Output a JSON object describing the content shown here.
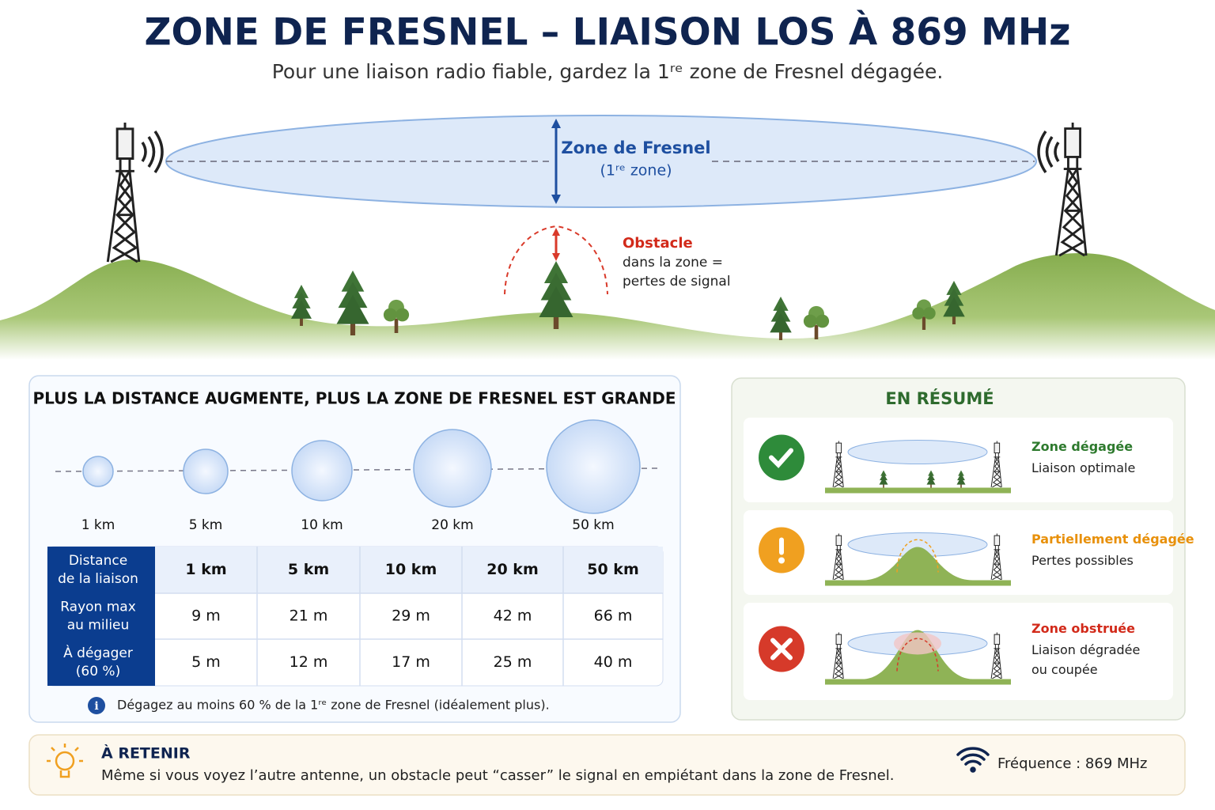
{
  "header": {
    "title": "ZONE DE FRESNEL – LIAISON LOS À 869 MHz",
    "subtitle": "Pour une liaison radio fiable, gardez la 1ʳᵉ zone de Fresnel dégagée."
  },
  "diagram": {
    "zone_label": "Zone de Fresnel",
    "zone_sublabel": "(1ʳᵉ zone)",
    "obstacle_title": "Obstacle",
    "obstacle_text": [
      "dans la zone =",
      "pertes de signal"
    ]
  },
  "distance_panel": {
    "title": "PLUS LA DISTANCE AUGMENTE, PLUS LA ZONE DE FRESNEL EST GRANDE",
    "circle_labels": [
      "1 km",
      "5 km",
      "10 km",
      "20 km",
      "50 km"
    ],
    "table": {
      "rows": [
        {
          "header": [
            "Distance",
            "de la liaison"
          ],
          "cells": [
            "1 km",
            "5 km",
            "10 km",
            "20 km",
            "50 km"
          ]
        },
        {
          "header": [
            "Rayon max",
            "au milieu"
          ],
          "cells": [
            "9 m",
            "21 m",
            "29 m",
            "42 m",
            "66 m"
          ]
        },
        {
          "header": [
            "À dégager",
            "(60 %)"
          ],
          "cells": [
            "5 m",
            "12 m",
            "17 m",
            "25 m",
            "40 m"
          ]
        }
      ]
    },
    "note": "Dégagez au moins 60 % de la 1ʳᵉ zone de Fresnel (idéalement plus)."
  },
  "summary": {
    "title": "EN RÉSUMÉ",
    "items": [
      {
        "status": "Zone dégagée",
        "detail": [
          "Liaison optimale"
        ]
      },
      {
        "status": "Partiellement dégagée",
        "detail": [
          "Pertes possibles"
        ]
      },
      {
        "status": "Zone obstruée",
        "detail": [
          "Liaison dégradée",
          "ou coupée"
        ]
      }
    ]
  },
  "footer": {
    "title": "À RETENIR",
    "text": "Même si vous voyez l’autre antenne, un obstacle peut “casser” le signal en empiétant dans la zone de Fresnel.",
    "frequency": "Fréquence : 869 MHz"
  }
}
